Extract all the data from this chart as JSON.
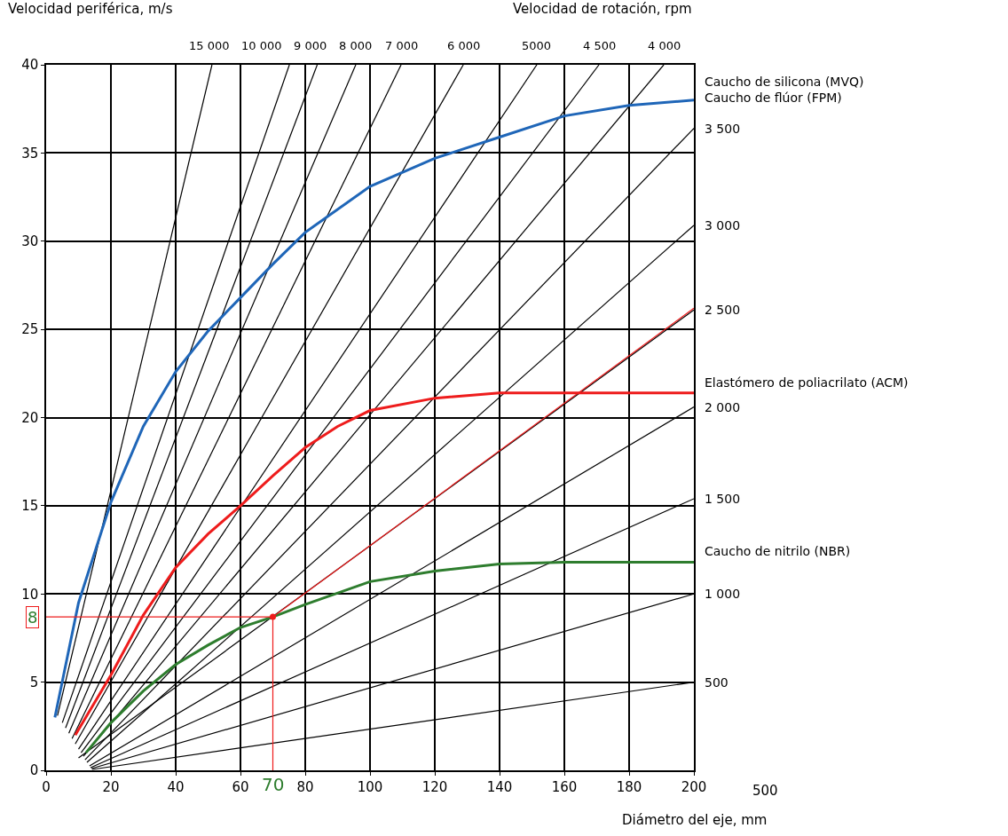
{
  "chart_data": {
    "type": "line",
    "ylabel": "Velocidad periférica, m/s",
    "xlabel": "Diámetro del eje, mm",
    "xlim": [
      0,
      200
    ],
    "xticks": [
      0,
      20,
      40,
      60,
      80,
      100,
      120,
      140,
      160,
      180,
      200
    ],
    "ylim": [
      0,
      40
    ],
    "yticks": [
      0,
      5,
      10,
      15,
      20,
      25,
      30,
      35,
      40
    ],
    "grid": true,
    "series": [
      {
        "name": "15 000",
        "color": "#000000",
        "x": [
          3.5,
          51.2
        ],
        "values": [
          3.1,
          40
        ]
      },
      {
        "name": "10 000",
        "color": "#000000",
        "x": [
          5,
          75.1
        ],
        "values": [
          2.7,
          40
        ]
      },
      {
        "name": "9 000",
        "color": "#000000",
        "x": [
          6,
          83.7
        ],
        "values": [
          2.4,
          40
        ]
      },
      {
        "name": "8 000",
        "color": "#000000",
        "x": [
          7,
          95.6
        ],
        "values": [
          2.1,
          40
        ]
      },
      {
        "name": "7 000",
        "color": "#000000",
        "x": [
          8,
          109.6
        ],
        "values": [
          1.8,
          40
        ]
      },
      {
        "name": "6 000",
        "color": "#000000",
        "x": [
          9,
          128.8
        ],
        "values": [
          1.5,
          40
        ]
      },
      {
        "name": "5000",
        "color": "#000000",
        "x": [
          10,
          151.5
        ],
        "values": [
          1.2,
          40
        ]
      },
      {
        "name": "4 500",
        "color": "#000000",
        "x": [
          10.8,
          170.7
        ],
        "values": [
          1.0,
          40
        ]
      },
      {
        "name": "4 000",
        "color": "#000000",
        "x": [
          11.5,
          190.7
        ],
        "values": [
          0.8,
          40
        ]
      },
      {
        "name": "3 500",
        "color": "#000000",
        "x": [
          12,
          200
        ],
        "values": [
          0.6,
          36.4
        ]
      },
      {
        "name": "3 000",
        "color": "#000000",
        "x": [
          12.6,
          200
        ],
        "values": [
          0.45,
          30.9
        ]
      },
      {
        "name": "2 500",
        "color": "#000000",
        "x": [
          10,
          200
        ],
        "values": [
          0.7,
          26.1
        ]
      },
      {
        "name": "2 000",
        "color": "#000000",
        "x": [
          13.4,
          200
        ],
        "values": [
          0.25,
          20.6
        ]
      },
      {
        "name": "1 500",
        "color": "#000000",
        "x": [
          13.7,
          200
        ],
        "values": [
          0.15,
          15.4
        ]
      },
      {
        "name": "1 000",
        "color": "#000000",
        "x": [
          14,
          200
        ],
        "values": [
          0.1,
          10.0
        ]
      },
      {
        "name": "500",
        "color": "#000000",
        "x": [
          14.2,
          200
        ],
        "values": [
          0.05,
          5.0
        ]
      },
      {
        "name": "Caucho de silicona (MVQ)\nCaucho de flúor (FPM)",
        "color": "#1f66b8",
        "x": [
          2.7,
          10,
          20,
          30,
          40,
          50,
          60,
          70,
          80,
          100,
          120,
          140,
          160,
          180,
          200
        ],
        "values": [
          3.0,
          9.5,
          15.2,
          19.5,
          22.6,
          24.9,
          26.8,
          28.7,
          30.5,
          33.1,
          34.7,
          35.9,
          37.1,
          37.7,
          38.0
        ]
      },
      {
        "name": "Elastómero de poliacrilato (ACM)",
        "color": "#ee1c1c",
        "x": [
          9,
          20,
          30,
          40,
          50,
          60,
          70,
          80,
          90,
          100,
          120,
          140,
          160,
          200
        ],
        "values": [
          2.0,
          5.4,
          8.8,
          11.5,
          13.4,
          15.0,
          16.7,
          18.3,
          19.5,
          20.4,
          21.1,
          21.4,
          21.4,
          21.4
        ]
      },
      {
        "name": "Caucho de nitrilo (NBR)",
        "color": "#2e7d2e",
        "x": [
          12.3,
          20,
          30,
          40,
          50,
          60,
          70,
          80,
          100,
          120,
          140,
          160,
          200
        ],
        "values": [
          1.0,
          2.7,
          4.5,
          6.0,
          7.1,
          8.1,
          8.7,
          9.4,
          10.7,
          11.3,
          11.7,
          11.8,
          11.8
        ]
      },
      {
        "color": "#ee1c1c",
        "x": [
          70,
          200
        ],
        "values": [
          8.7,
          26.2
        ]
      },
      {
        "color": "#ee1c1c",
        "x": [
          0,
          70,
          70
        ],
        "values": [
          8.7,
          8.7,
          0
        ]
      },
      {
        "type": "scatter",
        "color": "#ee1c1c",
        "x": [
          70
        ],
        "values": [
          8.7
        ]
      }
    ],
    "annotations": [
      "8",
      "70",
      "Velocidad de rotación, rpm",
      "500"
    ]
  }
}
